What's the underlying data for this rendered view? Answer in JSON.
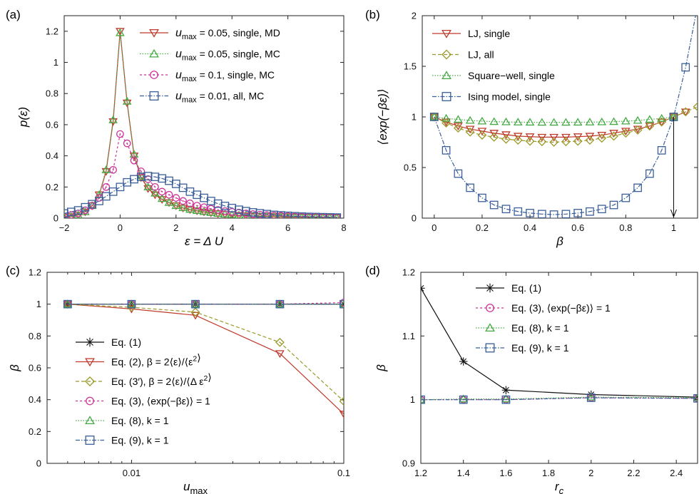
{
  "colors": {
    "red": "#c0392b",
    "olive": "#9a9a2a",
    "green": "#44aa44",
    "magenta": "#cc3399",
    "blue": "#3a5f9a",
    "black": "#111111"
  },
  "chart_data": [
    {
      "id": "a",
      "type": "line",
      "panel_label": "(a)",
      "xlabel": "ε = Δ U",
      "ylabel": "p(ε)",
      "xlim": [
        -2,
        8
      ],
      "ylim": [
        0,
        1.3
      ],
      "xticks": [
        -2,
        0,
        2,
        4,
        6,
        8
      ],
      "xtick_labels": [
        "−2",
        "0",
        "2",
        "4",
        "6",
        "8"
      ],
      "yticks": [
        0,
        0.2,
        0.4,
        0.6,
        0.8,
        1,
        1.2
      ],
      "ytick_labels": [
        "0",
        "0.2",
        "0.4",
        "0.6",
        "0.8",
        "1",
        "1.2"
      ],
      "legend_position": "top-right",
      "series": [
        {
          "name": "u_max = 0.05, single, MD",
          "legend_pre": "u",
          "legend_sub": "max",
          "legend_post": " = 0.05, single, MD",
          "color": "#c0392b",
          "dash": "",
          "marker": "triangle-down",
          "x": [
            -2,
            -1.75,
            -1.5,
            -1.25,
            -1,
            -0.75,
            -0.5,
            -0.25,
            0,
            0.25,
            0.5,
            0.75,
            1,
            1.25,
            1.5,
            1.75,
            2,
            2.25,
            2.5,
            2.75,
            3,
            3.25,
            3.5,
            3.75,
            4,
            4.25,
            4.5,
            4.75,
            5,
            5.25,
            5.5,
            5.75,
            6,
            6.25,
            6.5,
            6.75,
            7,
            7.25,
            7.5,
            7.75
          ],
          "y": [
            0.005,
            0.01,
            0.02,
            0.04,
            0.08,
            0.15,
            0.3,
            0.62,
            1.2,
            0.74,
            0.4,
            0.26,
            0.19,
            0.15,
            0.12,
            0.1,
            0.08,
            0.065,
            0.055,
            0.047,
            0.04,
            0.034,
            0.029,
            0.025,
            0.021,
            0.018,
            0.016,
            0.014,
            0.012,
            0.011,
            0.01,
            0.009,
            0.008,
            0.007,
            0.006,
            0.005,
            0.005,
            0.004,
            0.004,
            0.003
          ]
        },
        {
          "name": "u_max = 0.05, single, MC",
          "legend_pre": "u",
          "legend_sub": "max",
          "legend_post": " = 0.05, single, MC",
          "color": "#44aa44",
          "dash": "1.5,2",
          "marker": "triangle-up",
          "x": [
            -2,
            -1.75,
            -1.5,
            -1.25,
            -1,
            -0.75,
            -0.5,
            -0.25,
            0,
            0.25,
            0.5,
            0.75,
            1,
            1.25,
            1.5,
            1.75,
            2,
            2.25,
            2.5,
            2.75,
            3,
            3.25,
            3.5,
            3.75,
            4,
            4.25,
            4.5,
            4.75,
            5,
            5.25,
            5.5,
            5.75,
            6,
            6.25,
            6.5,
            6.75,
            7,
            7.25,
            7.5,
            7.75
          ],
          "y": [
            0.005,
            0.01,
            0.02,
            0.04,
            0.08,
            0.15,
            0.31,
            0.63,
            1.19,
            0.75,
            0.41,
            0.27,
            0.2,
            0.16,
            0.125,
            0.1,
            0.08,
            0.066,
            0.056,
            0.048,
            0.041,
            0.035,
            0.03,
            0.026,
            0.022,
            0.019,
            0.016,
            0.014,
            0.012,
            0.011,
            0.01,
            0.009,
            0.008,
            0.007,
            0.006,
            0.005,
            0.005,
            0.004,
            0.004,
            0.003
          ]
        },
        {
          "name": "u_max = 0.1, single, MC",
          "legend_pre": "u",
          "legend_sub": "max",
          "legend_post": " = 0.1, single, MC",
          "color": "#cc3399",
          "dash": "3,3",
          "marker": "circle",
          "x": [
            -2,
            -1.75,
            -1.5,
            -1.25,
            -1,
            -0.75,
            -0.5,
            -0.25,
            0,
            0.25,
            0.5,
            0.75,
            1,
            1.25,
            1.5,
            1.75,
            2,
            2.25,
            2.5,
            2.75,
            3,
            3.25,
            3.5,
            3.75,
            4,
            4.25,
            4.5,
            4.75,
            5,
            5.25,
            5.5,
            5.75,
            6,
            6.25,
            6.5,
            6.75,
            7,
            7.25,
            7.5,
            7.75
          ],
          "y": [
            0.01,
            0.02,
            0.03,
            0.05,
            0.08,
            0.13,
            0.2,
            0.31,
            0.54,
            0.48,
            0.37,
            0.3,
            0.25,
            0.2,
            0.17,
            0.15,
            0.13,
            0.11,
            0.095,
            0.08,
            0.07,
            0.06,
            0.052,
            0.045,
            0.04,
            0.035,
            0.03,
            0.026,
            0.022,
            0.019,
            0.017,
            0.015,
            0.013,
            0.011,
            0.01,
            0.009,
            0.008,
            0.007,
            0.006,
            0.005
          ]
        },
        {
          "name": "u_max = 0.01, all, MC",
          "legend_pre": "u",
          "legend_sub": "max",
          "legend_post": " = 0.01, all, MC",
          "color": "#3a5f9a",
          "dash": "6,2,1.5,2",
          "marker": "square",
          "x": [
            -2,
            -1.75,
            -1.5,
            -1.25,
            -1,
            -0.75,
            -0.5,
            -0.25,
            0,
            0.25,
            0.5,
            0.75,
            1,
            1.25,
            1.5,
            1.75,
            2,
            2.25,
            2.5,
            2.75,
            3,
            3.25,
            3.5,
            3.75,
            4,
            4.25,
            4.5,
            4.75,
            5,
            5.25,
            5.5,
            5.75,
            6,
            6.25,
            6.5,
            6.75,
            7,
            7.25,
            7.5,
            7.75
          ],
          "y": [
            0.03,
            0.04,
            0.05,
            0.07,
            0.09,
            0.11,
            0.14,
            0.17,
            0.2,
            0.23,
            0.25,
            0.265,
            0.27,
            0.265,
            0.255,
            0.24,
            0.22,
            0.195,
            0.17,
            0.15,
            0.13,
            0.11,
            0.093,
            0.078,
            0.065,
            0.054,
            0.045,
            0.037,
            0.031,
            0.026,
            0.021,
            0.018,
            0.015,
            0.012,
            0.01,
            0.008,
            0.007,
            0.006,
            0.005,
            0.004
          ]
        }
      ]
    },
    {
      "id": "b",
      "type": "line",
      "panel_label": "(b)",
      "xlabel": "β",
      "ylabel": "⟨exp(−βε)⟩",
      "xlim": [
        -0.05,
        1.1
      ],
      "ylim": [
        0,
        2
      ],
      "xticks": [
        0,
        0.2,
        0.4,
        0.6,
        0.8,
        1
      ],
      "xtick_labels": [
        "0",
        "0.2",
        "0.4",
        "0.6",
        "0.8",
        "1"
      ],
      "yticks": [
        0,
        0.5,
        1,
        1.5,
        2
      ],
      "ytick_labels": [
        "0",
        "0.5",
        "1",
        "1.5",
        "2"
      ],
      "legend_position": "top-left",
      "arrow": {
        "x": 1,
        "y_from": 1,
        "y_to": 0
      },
      "series": [
        {
          "name": "LJ, single",
          "legend_pre": "LJ, single",
          "legend_sub": "",
          "legend_post": "",
          "color": "#c0392b",
          "dash": "",
          "marker": "triangle-down",
          "x": [
            0,
            0.05,
            0.1,
            0.15,
            0.2,
            0.25,
            0.3,
            0.35,
            0.4,
            0.45,
            0.5,
            0.55,
            0.6,
            0.65,
            0.7,
            0.75,
            0.8,
            0.85,
            0.9,
            0.95,
            1,
            1.05
          ],
          "y": [
            1,
            0.95,
            0.91,
            0.88,
            0.86,
            0.84,
            0.825,
            0.81,
            0.805,
            0.8,
            0.8,
            0.8,
            0.805,
            0.81,
            0.82,
            0.84,
            0.86,
            0.88,
            0.91,
            0.95,
            1,
            1.05
          ]
        },
        {
          "name": "LJ, all",
          "legend_pre": "LJ, all",
          "legend_sub": "",
          "legend_post": "",
          "color": "#9a9a2a",
          "dash": "5,3",
          "marker": "diamond",
          "x": [
            0,
            0.05,
            0.1,
            0.15,
            0.2,
            0.25,
            0.3,
            0.35,
            0.4,
            0.45,
            0.5,
            0.55,
            0.6,
            0.65,
            0.7,
            0.75,
            0.8,
            0.85,
            0.9,
            0.95,
            1,
            1.05,
            1.1
          ],
          "y": [
            1,
            0.94,
            0.89,
            0.85,
            0.82,
            0.8,
            0.78,
            0.77,
            0.76,
            0.755,
            0.75,
            0.755,
            0.76,
            0.77,
            0.79,
            0.81,
            0.84,
            0.87,
            0.91,
            0.95,
            1,
            1.05,
            1.1
          ]
        },
        {
          "name": "Square−well, single",
          "legend_pre": "Square−well, single",
          "legend_sub": "",
          "legend_post": "",
          "color": "#44aa44",
          "dash": "1.5,2",
          "marker": "triangle-up",
          "x": [
            0,
            0.05,
            0.1,
            0.15,
            0.2,
            0.25,
            0.3,
            0.35,
            0.4,
            0.45,
            0.5,
            0.55,
            0.6,
            0.65,
            0.7,
            0.75,
            0.8,
            0.85,
            0.9,
            0.95,
            1
          ],
          "y": [
            1,
            0.985,
            0.975,
            0.965,
            0.958,
            0.953,
            0.95,
            0.948,
            0.947,
            0.946,
            0.946,
            0.946,
            0.947,
            0.948,
            0.95,
            0.953,
            0.958,
            0.965,
            0.975,
            0.985,
            1
          ]
        },
        {
          "name": "Ising model, single",
          "legend_pre": "Ising model, single",
          "legend_sub": "",
          "legend_post": "",
          "color": "#3a5f9a",
          "dash": "6,2,1.5,2",
          "marker": "square",
          "x": [
            0,
            0.05,
            0.1,
            0.15,
            0.2,
            0.25,
            0.3,
            0.35,
            0.4,
            0.45,
            0.5,
            0.55,
            0.6,
            0.65,
            0.7,
            0.75,
            0.8,
            0.85,
            0.9,
            0.95,
            1,
            1.05
          ],
          "y": [
            1,
            0.67,
            0.44,
            0.3,
            0.2,
            0.13,
            0.09,
            0.065,
            0.05,
            0.04,
            0.035,
            0.04,
            0.05,
            0.065,
            0.09,
            0.13,
            0.2,
            0.3,
            0.44,
            0.67,
            1,
            1.49
          ],
          "extend_to": [
            1.1,
            2.1
          ]
        }
      ]
    },
    {
      "id": "c",
      "type": "line",
      "panel_label": "(c)",
      "xlabel": "u_max",
      "xlabel_pre": "u",
      "xlabel_sub": "max",
      "ylabel": "β",
      "x_scale": "log",
      "xlim": [
        0.004,
        0.1
      ],
      "ylim": [
        0,
        1.2
      ],
      "xticks": [
        0.01,
        0.1
      ],
      "xtick_labels": [
        "0.01",
        "0.1"
      ],
      "minor_xticks": [
        0.005,
        0.006,
        0.007,
        0.008,
        0.009,
        0.02,
        0.03,
        0.04,
        0.05,
        0.06,
        0.07,
        0.08,
        0.09
      ],
      "yticks": [
        0,
        0.2,
        0.4,
        0.6,
        0.8,
        1,
        1.2
      ],
      "ytick_labels": [
        "0",
        "0.2",
        "0.4",
        "0.6",
        "0.8",
        "1",
        "1.2"
      ],
      "legend_position": "bottom-left",
      "series": [
        {
          "name": "Eq. (1)",
          "legend_pre": "Eq. (1)",
          "legend_sub": "",
          "legend_post": "",
          "color": "#111111",
          "dash": "",
          "marker": "asterisk",
          "x": [
            0.005,
            0.01,
            0.02,
            0.05,
            0.1
          ],
          "y": [
            1,
            1,
            1,
            1,
            1
          ]
        },
        {
          "name": "Eq. (2), β = 2⟨ε⟩/⟨ε²⟩",
          "legend_pre": "Eq. (2), β = 2⟨ε⟩/⟨ε",
          "legend_sub": "",
          "legend_sup": "2",
          "legend_post": "⟩",
          "color": "#c0392b",
          "dash": "",
          "marker": "triangle-down",
          "x": [
            0.005,
            0.01,
            0.02,
            0.05,
            0.1
          ],
          "y": [
            1,
            0.97,
            0.93,
            0.69,
            0.31
          ]
        },
        {
          "name": "Eq. (3′), β = 2⟨ε⟩/⟨Δε²⟩",
          "legend_pre": "Eq. (3′), β = 2⟨ε⟩/⟨Δ ε",
          "legend_sub": "",
          "legend_sup": "2",
          "legend_post": "⟩",
          "color": "#9a9a2a",
          "dash": "5,3",
          "marker": "diamond",
          "x": [
            0.005,
            0.01,
            0.02,
            0.05,
            0.1
          ],
          "y": [
            1,
            0.98,
            0.95,
            0.76,
            0.39
          ]
        },
        {
          "name": "Eq. (3), ⟨exp(−βε)⟩ = 1",
          "legend_pre": "Eq. (3), ⟨exp(−βε)⟩ = 1",
          "legend_sub": "",
          "legend_post": "",
          "color": "#cc3399",
          "dash": "3,3",
          "marker": "circle",
          "x": [
            0.005,
            0.01,
            0.02,
            0.05,
            0.1
          ],
          "y": [
            1,
            1,
            1,
            1,
            1.01
          ]
        },
        {
          "name": "Eq. (8), k = 1",
          "legend_pre": "Eq. (8), k = 1",
          "legend_sub": "",
          "legend_post": "",
          "color": "#44aa44",
          "dash": "1.5,2",
          "marker": "triangle-up",
          "x": [
            0.005,
            0.01,
            0.02,
            0.05,
            0.1
          ],
          "y": [
            1,
            1,
            1,
            1,
            1
          ]
        },
        {
          "name": "Eq. (9), k = 1",
          "legend_pre": "Eq. (9), k = 1",
          "legend_sub": "",
          "legend_post": "",
          "color": "#3a5f9a",
          "dash": "6,2,1.5,2",
          "marker": "square",
          "x": [
            0.005,
            0.01,
            0.02,
            0.05,
            0.1
          ],
          "y": [
            1,
            1,
            1,
            1,
            1
          ]
        }
      ]
    },
    {
      "id": "d",
      "type": "line",
      "panel_label": "(d)",
      "xlabel": "r_c",
      "xlabel_pre": "r",
      "xlabel_sub": "c",
      "ylabel": "β",
      "xlim": [
        1.2,
        2.5
      ],
      "ylim": [
        0.9,
        1.2
      ],
      "xticks": [
        1.2,
        1.4,
        1.6,
        1.8,
        2,
        2.2,
        2.4
      ],
      "xtick_labels": [
        "1.2",
        "1.4",
        "1.6",
        "1.8",
        "2",
        "2.2",
        "2.4"
      ],
      "yticks": [
        0.9,
        1,
        1.1,
        1.2
      ],
      "ytick_labels": [
        "0.9",
        "1",
        "1.1",
        "1.2"
      ],
      "legend_position": "top-right",
      "series": [
        {
          "name": "Eq. (1)",
          "legend_pre": "Eq. (1)",
          "legend_sub": "",
          "legend_post": "",
          "color": "#111111",
          "dash": "",
          "marker": "asterisk",
          "x": [
            1.2,
            1.4,
            1.6,
            2,
            2.5
          ],
          "y": [
            1.175,
            1.06,
            1.015,
            1.008,
            1.004
          ]
        },
        {
          "name": "Eq. (3), ⟨exp(−βε)⟩ = 1",
          "legend_pre": "Eq. (3), ⟨exp(−βε)⟩ = 1",
          "legend_sub": "",
          "legend_post": "",
          "color": "#cc3399",
          "dash": "3,3",
          "marker": "circle",
          "x": [
            1.2,
            1.4,
            1.6,
            2,
            2.5
          ],
          "y": [
            1,
            1,
            1,
            1.003,
            1.002
          ]
        },
        {
          "name": "Eq. (8), k = 1",
          "legend_pre": "Eq. (8), k = 1",
          "legend_sub": "",
          "legend_post": "",
          "color": "#44aa44",
          "dash": "1.5,2",
          "marker": "triangle-up",
          "x": [
            1.2,
            1.4,
            1.6,
            2,
            2.5
          ],
          "y": [
            1,
            1.001,
            1.001,
            1.004,
            1.003
          ]
        },
        {
          "name": "Eq. (9), k = 1",
          "legend_pre": "Eq. (9), k = 1",
          "legend_sub": "",
          "legend_post": "",
          "color": "#3a5f9a",
          "dash": "6,2,1.5,2",
          "marker": "square",
          "x": [
            1.2,
            1.4,
            1.6,
            2,
            2.5
          ],
          "y": [
            1,
            1,
            1,
            1.003,
            1.002
          ]
        }
      ]
    }
  ]
}
